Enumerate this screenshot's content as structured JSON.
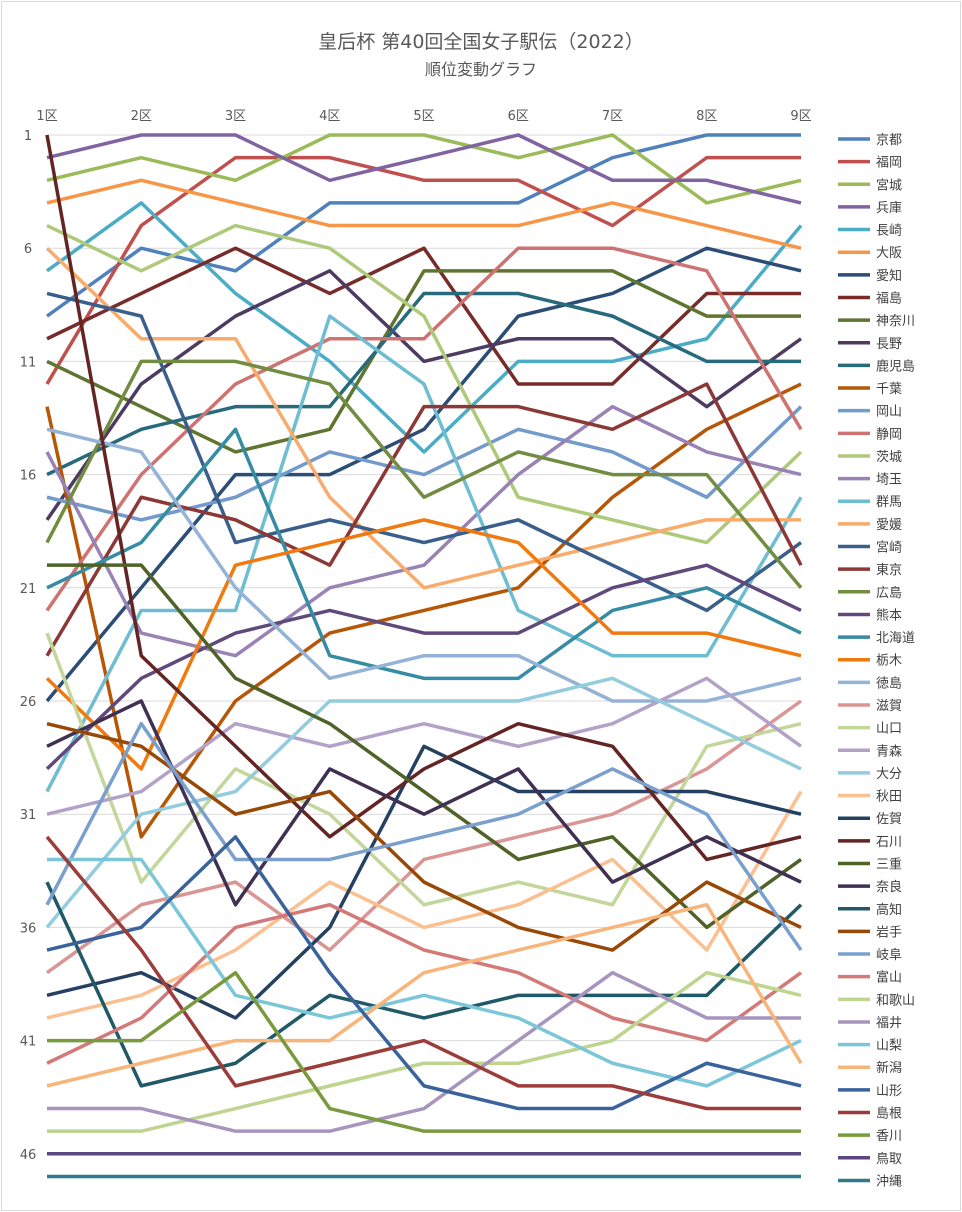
{
  "chart_data": {
    "type": "line",
    "title": "皇后杯 第40回全国女子駅伝（2022）",
    "subtitle": "順位変動グラフ",
    "categories": [
      "1区",
      "2区",
      "3区",
      "4区",
      "5区",
      "6区",
      "7区",
      "8区",
      "9区"
    ],
    "y_ticks": [
      1,
      6,
      11,
      16,
      21,
      26,
      31,
      36,
      41,
      46
    ],
    "ylim": [
      1,
      47
    ],
    "y_reversed": true,
    "grid": "horizontal",
    "legend_position": "right",
    "series": [
      {
        "name": "京都",
        "color": "#4F81BD",
        "values": [
          9,
          6,
          7,
          4,
          4,
          4,
          2,
          1,
          1
        ]
      },
      {
        "name": "福岡",
        "color": "#C0504D",
        "values": [
          12,
          5,
          2,
          2,
          3,
          3,
          5,
          2,
          2
        ]
      },
      {
        "name": "宮城",
        "color": "#9BBB59",
        "values": [
          3,
          2,
          3,
          1,
          1,
          2,
          1,
          4,
          3
        ]
      },
      {
        "name": "兵庫",
        "color": "#8064A2",
        "values": [
          2,
          1,
          1,
          3,
          2,
          1,
          3,
          3,
          4
        ]
      },
      {
        "name": "長崎",
        "color": "#4BACC6",
        "values": [
          7,
          4,
          8,
          11,
          15,
          11,
          11,
          10,
          5
        ]
      },
      {
        "name": "大阪",
        "color": "#F79646",
        "values": [
          4,
          3,
          4,
          5,
          5,
          5,
          4,
          5,
          6
        ]
      },
      {
        "name": "愛知",
        "color": "#2C4D75",
        "values": [
          26,
          21,
          16,
          16,
          14,
          9,
          8,
          6,
          7
        ]
      },
      {
        "name": "福島",
        "color": "#772C2A",
        "values": [
          10,
          8,
          6,
          8,
          6,
          12,
          12,
          8,
          8
        ]
      },
      {
        "name": "神奈川",
        "color": "#5F7530",
        "values": [
          11,
          13,
          15,
          14,
          7,
          7,
          7,
          9,
          9
        ]
      },
      {
        "name": "長野",
        "color": "#4D3B62",
        "values": [
          18,
          12,
          9,
          7,
          11,
          10,
          10,
          13,
          10
        ]
      },
      {
        "name": "鹿児島",
        "color": "#276A7C",
        "values": [
          16,
          14,
          13,
          13,
          8,
          8,
          9,
          11,
          11
        ]
      },
      {
        "name": "千葉",
        "color": "#B65708",
        "values": [
          13,
          32,
          26,
          23,
          22,
          21,
          17,
          14,
          12
        ]
      },
      {
        "name": "岡山",
        "color": "#729ACA",
        "values": [
          17,
          18,
          17,
          15,
          16,
          14,
          15,
          17,
          13
        ]
      },
      {
        "name": "静岡",
        "color": "#CD7371",
        "values": [
          22,
          16,
          12,
          10,
          10,
          6,
          6,
          7,
          14
        ]
      },
      {
        "name": "茨城",
        "color": "#AFC97A",
        "values": [
          5,
          7,
          5,
          6,
          9,
          17,
          18,
          19,
          15
        ]
      },
      {
        "name": "埼玉",
        "color": "#9983B5",
        "values": [
          15,
          23,
          24,
          21,
          20,
          16,
          13,
          15,
          16
        ]
      },
      {
        "name": "群馬",
        "color": "#6FBDD1",
        "values": [
          30,
          22,
          22,
          9,
          12,
          22,
          24,
          24,
          17
        ]
      },
      {
        "name": "愛媛",
        "color": "#F9AB6B",
        "values": [
          6,
          10,
          10,
          17,
          21,
          20,
          19,
          18,
          18
        ]
      },
      {
        "name": "宮崎",
        "color": "#3A5F8B",
        "values": [
          8,
          9,
          19,
          18,
          19,
          18,
          20,
          22,
          19
        ]
      },
      {
        "name": "東京",
        "color": "#8C3836",
        "values": [
          24,
          17,
          18,
          20,
          13,
          13,
          14,
          12,
          20
        ]
      },
      {
        "name": "広島",
        "color": "#728C41",
        "values": [
          19,
          11,
          11,
          12,
          17,
          15,
          16,
          16,
          21
        ]
      },
      {
        "name": "熊本",
        "color": "#5F4A7B",
        "values": [
          29,
          25,
          23,
          22,
          23,
          23,
          21,
          20,
          22
        ]
      },
      {
        "name": "北海道",
        "color": "#358CA3",
        "values": [
          21,
          19,
          14,
          24,
          25,
          25,
          22,
          21,
          23
        ]
      },
      {
        "name": "栃木",
        "color": "#F07A10",
        "values": [
          25,
          29,
          20,
          19,
          18,
          19,
          23,
          23,
          24
        ]
      },
      {
        "name": "徳島",
        "color": "#95B3D7",
        "values": [
          14,
          15,
          21,
          25,
          24,
          24,
          26,
          26,
          25
        ]
      },
      {
        "name": "滋賀",
        "color": "#D99694",
        "values": [
          38,
          35,
          34,
          37,
          33,
          32,
          31,
          29,
          26
        ]
      },
      {
        "name": "山口",
        "color": "#C3D69B",
        "values": [
          23,
          34,
          29,
          31,
          35,
          34,
          35,
          28,
          27
        ]
      },
      {
        "name": "青森",
        "color": "#B3A2C7",
        "values": [
          31,
          30,
          27,
          28,
          27,
          28,
          27,
          25,
          28
        ]
      },
      {
        "name": "大分",
        "color": "#93CDDD",
        "values": [
          36,
          31,
          30,
          26,
          26,
          26,
          25,
          27,
          29
        ]
      },
      {
        "name": "秋田",
        "color": "#FAC090",
        "values": [
          40,
          39,
          37,
          34,
          36,
          35,
          33,
          37,
          30
        ]
      },
      {
        "name": "佐賀",
        "color": "#254061",
        "values": [
          39,
          38,
          40,
          36,
          28,
          30,
          30,
          30,
          31
        ]
      },
      {
        "name": "石川",
        "color": "#632523",
        "values": [
          1,
          24,
          28,
          32,
          29,
          27,
          28,
          33,
          32
        ]
      },
      {
        "name": "三重",
        "color": "#4F6228",
        "values": [
          20,
          20,
          25,
          27,
          30,
          33,
          32,
          36,
          33
        ]
      },
      {
        "name": "奈良",
        "color": "#403152",
        "values": [
          28,
          26,
          35,
          29,
          31,
          29,
          34,
          32,
          34
        ]
      },
      {
        "name": "高知",
        "color": "#215968",
        "values": [
          34,
          43,
          42,
          39,
          40,
          39,
          39,
          39,
          35
        ]
      },
      {
        "name": "岩手",
        "color": "#984807",
        "values": [
          27,
          28,
          31,
          30,
          34,
          36,
          37,
          34,
          36
        ]
      },
      {
        "name": "岐阜",
        "color": "#7BA0CD",
        "values": [
          35,
          27,
          33,
          33,
          32,
          31,
          29,
          31,
          37
        ]
      },
      {
        "name": "富山",
        "color": "#D37A78",
        "values": [
          42,
          40,
          36,
          35,
          37,
          38,
          40,
          41,
          38
        ]
      },
      {
        "name": "和歌山",
        "color": "#BFD48F",
        "values": [
          45,
          45,
          44,
          43,
          42,
          42,
          41,
          38,
          39
        ]
      },
      {
        "name": "福井",
        "color": "#A795BD",
        "values": [
          44,
          44,
          45,
          45,
          44,
          41,
          38,
          40,
          40
        ]
      },
      {
        "name": "山梨",
        "color": "#7BC6D8",
        "values": [
          33,
          33,
          39,
          40,
          39,
          40,
          42,
          43,
          41
        ]
      },
      {
        "name": "新潟",
        "color": "#F8B57A",
        "values": [
          43,
          42,
          41,
          41,
          38,
          37,
          36,
          35,
          42
        ]
      },
      {
        "name": "山形",
        "color": "#3B639B",
        "values": [
          37,
          36,
          32,
          38,
          43,
          44,
          44,
          42,
          43
        ]
      },
      {
        "name": "島根",
        "color": "#9B3D3A",
        "values": [
          32,
          37,
          43,
          42,
          41,
          43,
          43,
          44,
          44
        ]
      },
      {
        "name": "香川",
        "color": "#7A9A3E",
        "values": [
          41,
          41,
          38,
          44,
          45,
          45,
          45,
          45,
          45
        ]
      },
      {
        "name": "鳥取",
        "color": "#5C4581",
        "values": [
          46,
          46,
          46,
          46,
          46,
          46,
          46,
          46,
          46
        ]
      },
      {
        "name": "沖縄",
        "color": "#2E7A8E",
        "values": [
          47,
          47,
          47,
          47,
          47,
          47,
          47,
          47,
          47
        ]
      }
    ]
  }
}
